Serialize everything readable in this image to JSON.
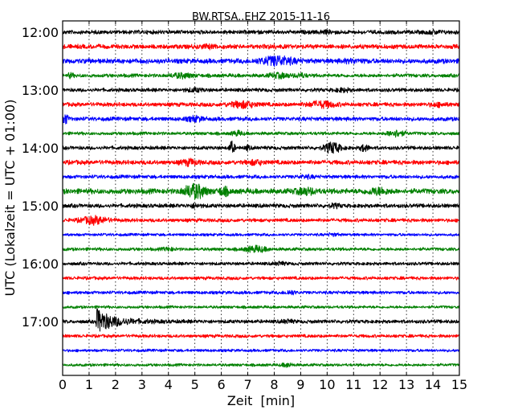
{
  "chart_data": {
    "type": "line",
    "title": "BW.RTSA..EHZ 2015-11-16",
    "xlabel": "Zeit  [min]",
    "ylabel": "UTC (Lokalzeit = UTC + 01:00)",
    "xlim": [
      0,
      15
    ],
    "x_ticks": [
      "0",
      "1",
      "2",
      "3",
      "4",
      "5",
      "6",
      "7",
      "8",
      "9",
      "10",
      "11",
      "12",
      "13",
      "14",
      "15"
    ],
    "y_ticks": [
      "12:00",
      "13:00",
      "14:00",
      "15:00",
      "16:00",
      "17:00"
    ],
    "grid": "vertical dotted at each minute",
    "colors": [
      "#000000",
      "#ff0000",
      "#0000ff",
      "#008000"
    ],
    "traces": [
      {
        "start": "12:00",
        "noise": 1.0,
        "events": [
          [
            10.0,
            0.5,
            0.3
          ],
          [
            14.0,
            0.6,
            0.3
          ]
        ]
      },
      {
        "start": "12:15",
        "noise": 1.1,
        "events": [
          [
            5.5,
            0.6,
            0.4
          ],
          [
            8.0,
            0.4,
            0.3
          ]
        ]
      },
      {
        "start": "12:30",
        "noise": 1.2,
        "events": [
          [
            8.1,
            2.5,
            0.6
          ],
          [
            11.0,
            0.6,
            0.4
          ]
        ]
      },
      {
        "start": "12:45",
        "noise": 0.9,
        "events": [
          [
            0.3,
            1.2,
            0.1
          ],
          [
            4.5,
            1.2,
            0.4
          ],
          [
            8.2,
            1.2,
            0.4
          ],
          [
            9.0,
            1.0,
            0.2
          ]
        ]
      },
      {
        "start": "13:00",
        "noise": 0.9,
        "events": [
          [
            5.0,
            0.8,
            0.3
          ],
          [
            10.6,
            0.8,
            0.3
          ]
        ]
      },
      {
        "start": "13:15",
        "noise": 1.0,
        "events": [
          [
            6.8,
            1.6,
            0.5
          ],
          [
            9.8,
            1.6,
            0.5
          ],
          [
            14.2,
            0.8,
            0.3
          ]
        ]
      },
      {
        "start": "13:30",
        "noise": 1.0,
        "events": [
          [
            0.05,
            3.0,
            0.15
          ],
          [
            5.0,
            1.2,
            0.3
          ]
        ]
      },
      {
        "start": "13:45",
        "noise": 0.8,
        "events": [
          [
            6.6,
            1.2,
            0.2
          ],
          [
            12.6,
            1.8,
            0.3
          ]
        ]
      },
      {
        "start": "14:00",
        "noise": 0.9,
        "events": [
          [
            6.4,
            3.5,
            0.1
          ],
          [
            7.0,
            1.0,
            0.1
          ],
          [
            10.2,
            3.0,
            0.3
          ],
          [
            11.4,
            1.8,
            0.15
          ]
        ]
      },
      {
        "start": "14:15",
        "noise": 1.1,
        "events": [
          [
            4.8,
            1.4,
            0.3
          ],
          [
            7.3,
            1.0,
            0.3
          ]
        ]
      },
      {
        "start": "14:30",
        "noise": 0.9,
        "events": [
          [
            9.2,
            0.6,
            0.3
          ]
        ]
      },
      {
        "start": "14:45",
        "noise": 1.3,
        "events": [
          [
            5.0,
            4.0,
            0.4
          ],
          [
            6.1,
            2.0,
            0.2
          ],
          [
            9.2,
            1.5,
            0.4
          ],
          [
            11.9,
            1.5,
            0.4
          ]
        ]
      },
      {
        "start": "15:00",
        "noise": 1.0,
        "events": [
          [
            5.0,
            0.8,
            0.2
          ],
          [
            10.3,
            0.8,
            0.2
          ]
        ]
      },
      {
        "start": "15:15",
        "noise": 0.9,
        "events": [
          [
            1.2,
            2.0,
            0.5
          ]
        ]
      },
      {
        "start": "15:30",
        "noise": 0.7,
        "events": [
          [
            10.2,
            0.6,
            0.2
          ]
        ]
      },
      {
        "start": "15:45",
        "noise": 0.8,
        "events": [
          [
            4.0,
            0.8,
            0.2
          ],
          [
            7.3,
            1.6,
            0.4
          ]
        ]
      },
      {
        "start": "16:00",
        "noise": 0.8,
        "events": [
          [
            8.2,
            0.8,
            0.2
          ]
        ]
      },
      {
        "start": "16:15",
        "noise": 0.8,
        "events": []
      },
      {
        "start": "16:30",
        "noise": 0.8,
        "events": [
          [
            8.6,
            1.0,
            0.2
          ]
        ]
      },
      {
        "start": "16:45",
        "noise": 0.7,
        "events": []
      },
      {
        "start": "17:00",
        "noise": 0.9,
        "events": [
          [
            1.25,
            13.0,
            1.2
          ],
          [
            8.5,
            0.8,
            0.2
          ]
        ]
      },
      {
        "start": "17:15",
        "noise": 0.8,
        "events": []
      },
      {
        "start": "17:30",
        "noise": 0.7,
        "events": []
      },
      {
        "start": "17:45",
        "noise": 0.7,
        "events": [
          [
            8.5,
            1.0,
            0.2
          ]
        ]
      }
    ]
  }
}
